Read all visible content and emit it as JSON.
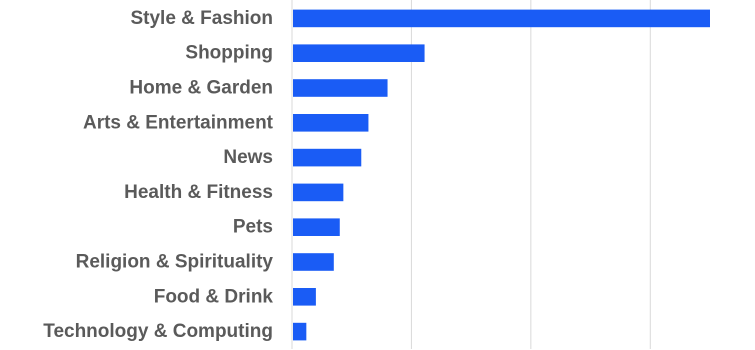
{
  "chart_data": {
    "type": "bar",
    "orientation": "horizontal",
    "categories": [
      "Style & Fashion",
      "Shopping",
      "Home & Garden",
      "Arts & Entertainment",
      "News",
      "Health & Fitness",
      "Pets",
      "Religion & Spirituality",
      "Food & Drink",
      "Technology & Computing"
    ],
    "values": [
      35,
      11.1,
      8,
      6.4,
      5.8,
      4.3,
      4,
      3.5,
      2,
      1.2
    ],
    "xlim": [
      0,
      35
    ],
    "grid": true,
    "bar_color": "#1a5cf5",
    "gridline_color": "#d9d9d9",
    "label_color": "#5a5a5a"
  }
}
